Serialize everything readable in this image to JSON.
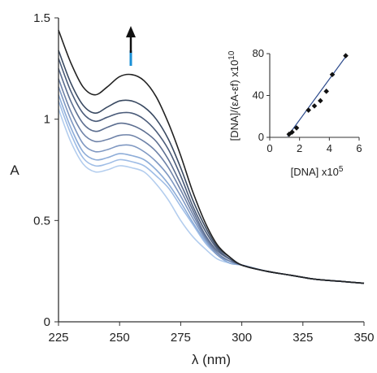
{
  "chart_data": [
    {
      "type": "line",
      "xlabel": "λ (nm)",
      "ylabel": "A",
      "xlim": [
        225,
        350
      ],
      "ylim": [
        0,
        1.5
      ],
      "xticks": [
        "225",
        "250",
        "275",
        "300",
        "325",
        "350"
      ],
      "yticks": [
        "0",
        "0.5",
        "1",
        "1.5"
      ],
      "grid": false,
      "legend": "none",
      "annotation": "upward arrow near 253 nm (absorbance increases with added DNA)",
      "series": [
        {
          "color": "#222222",
          "x": [
            225,
            230,
            235,
            240,
            245,
            250,
            255,
            260,
            265,
            270,
            275,
            280,
            285,
            290,
            295,
            300,
            310,
            320,
            330,
            340,
            350
          ],
          "y": [
            1.44,
            1.28,
            1.16,
            1.12,
            1.16,
            1.21,
            1.22,
            1.19,
            1.11,
            0.98,
            0.82,
            0.64,
            0.49,
            0.38,
            0.32,
            0.28,
            0.25,
            0.23,
            0.21,
            0.2,
            0.19
          ]
        },
        {
          "color": "#3a4a62",
          "x": [
            225,
            230,
            235,
            240,
            245,
            250,
            255,
            260,
            265,
            270,
            275,
            280,
            285,
            290,
            295,
            300,
            310,
            320,
            330,
            340,
            350
          ],
          "y": [
            1.34,
            1.18,
            1.07,
            1.03,
            1.06,
            1.09,
            1.09,
            1.06,
            1.0,
            0.9,
            0.76,
            0.6,
            0.47,
            0.37,
            0.32,
            0.28,
            0.25,
            0.23,
            0.21,
            0.2,
            0.19
          ]
        },
        {
          "color": "#4b5c7a",
          "x": [
            225,
            230,
            235,
            240,
            245,
            250,
            255,
            260,
            265,
            270,
            275,
            280,
            285,
            290,
            295,
            300,
            310,
            320,
            330,
            340,
            350
          ],
          "y": [
            1.3,
            1.14,
            1.03,
            0.99,
            1.01,
            1.03,
            1.03,
            1.0,
            0.94,
            0.85,
            0.72,
            0.57,
            0.45,
            0.36,
            0.31,
            0.28,
            0.25,
            0.23,
            0.21,
            0.2,
            0.19
          ]
        },
        {
          "color": "#5c6e90",
          "x": [
            225,
            230,
            235,
            240,
            245,
            250,
            255,
            260,
            265,
            270,
            275,
            280,
            285,
            290,
            295,
            300,
            310,
            320,
            330,
            340,
            350
          ],
          "y": [
            1.25,
            1.09,
            0.98,
            0.94,
            0.96,
            0.98,
            0.97,
            0.94,
            0.89,
            0.8,
            0.68,
            0.55,
            0.43,
            0.35,
            0.31,
            0.28,
            0.25,
            0.23,
            0.21,
            0.2,
            0.19
          ]
        },
        {
          "color": "#6e82a8",
          "x": [
            225,
            230,
            235,
            240,
            245,
            250,
            255,
            260,
            265,
            270,
            275,
            280,
            285,
            290,
            295,
            300,
            310,
            320,
            330,
            340,
            350
          ],
          "y": [
            1.2,
            1.04,
            0.93,
            0.89,
            0.9,
            0.92,
            0.92,
            0.89,
            0.84,
            0.76,
            0.65,
            0.53,
            0.42,
            0.34,
            0.3,
            0.28,
            0.25,
            0.23,
            0.21,
            0.2,
            0.19
          ]
        },
        {
          "color": "#7f98c2",
          "x": [
            225,
            230,
            235,
            240,
            245,
            250,
            255,
            260,
            265,
            270,
            275,
            280,
            285,
            290,
            295,
            300,
            310,
            320,
            330,
            340,
            350
          ],
          "y": [
            1.16,
            1.0,
            0.88,
            0.84,
            0.85,
            0.87,
            0.87,
            0.84,
            0.79,
            0.72,
            0.62,
            0.51,
            0.41,
            0.33,
            0.3,
            0.28,
            0.25,
            0.23,
            0.21,
            0.2,
            0.19
          ]
        },
        {
          "color": "#8eadd8",
          "x": [
            225,
            230,
            235,
            240,
            245,
            250,
            255,
            260,
            265,
            270,
            275,
            280,
            285,
            290,
            295,
            300,
            310,
            320,
            330,
            340,
            350
          ],
          "y": [
            1.12,
            0.96,
            0.84,
            0.8,
            0.81,
            0.83,
            0.82,
            0.8,
            0.75,
            0.68,
            0.59,
            0.49,
            0.4,
            0.33,
            0.29,
            0.28,
            0.25,
            0.23,
            0.21,
            0.2,
            0.19
          ]
        },
        {
          "color": "#9fbde6",
          "x": [
            225,
            230,
            235,
            240,
            245,
            250,
            255,
            260,
            265,
            270,
            275,
            280,
            285,
            290,
            295,
            300,
            310,
            320,
            330,
            340,
            350
          ],
          "y": [
            1.09,
            0.93,
            0.81,
            0.77,
            0.78,
            0.8,
            0.79,
            0.77,
            0.72,
            0.66,
            0.57,
            0.48,
            0.39,
            0.33,
            0.29,
            0.28,
            0.25,
            0.23,
            0.21,
            0.2,
            0.19
          ]
        },
        {
          "color": "#b3cdee",
          "x": [
            225,
            230,
            235,
            240,
            245,
            250,
            255,
            260,
            265,
            270,
            275,
            280,
            285,
            290,
            295,
            300,
            310,
            320,
            330,
            340,
            350
          ],
          "y": [
            1.05,
            0.89,
            0.78,
            0.74,
            0.75,
            0.77,
            0.76,
            0.74,
            0.68,
            0.6,
            0.5,
            0.42,
            0.36,
            0.31,
            0.29,
            0.28,
            0.25,
            0.23,
            0.21,
            0.2,
            0.19
          ]
        }
      ]
    },
    {
      "type": "scatter",
      "xlabel": "[DNA] x10",
      "xlabel_exp": "5",
      "ylabel": "[DNA]/(εA-εf) x10",
      "ylabel_exp": "10",
      "xlim": [
        0,
        6
      ],
      "ylim": [
        0,
        80
      ],
      "xticks": [
        "0",
        "2",
        "4",
        "6"
      ],
      "yticks": [
        "0",
        "40",
        "80"
      ],
      "points": {
        "x": [
          1.3,
          1.5,
          1.8,
          2.6,
          3.0,
          3.4,
          3.8,
          4.2,
          5.1
        ],
        "y": [
          3,
          5,
          9,
          26,
          30,
          35,
          44,
          60,
          78
        ]
      },
      "fit_line": {
        "x": [
          1.2,
          5.2
        ],
        "y": [
          1,
          79
        ]
      }
    }
  ]
}
